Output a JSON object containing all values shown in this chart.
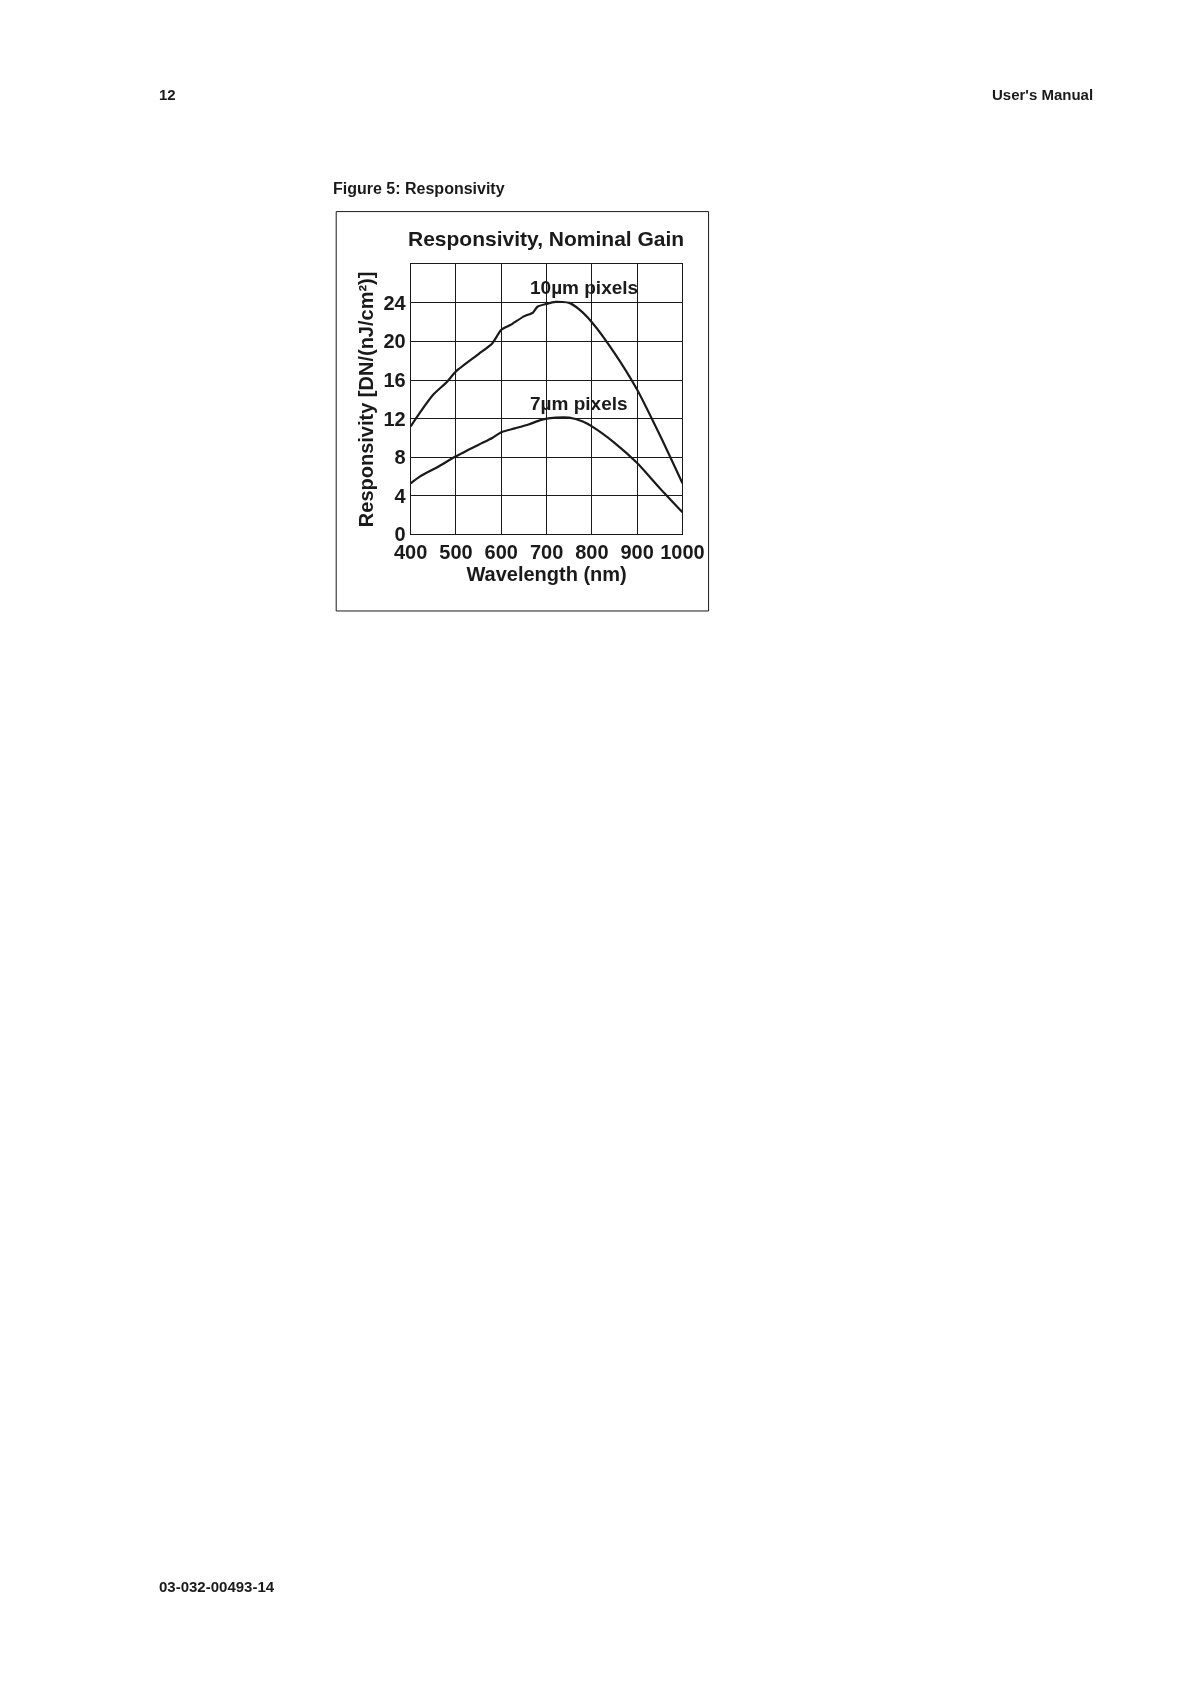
{
  "chart_data": {
    "type": "line",
    "title": "Responsivity, Nominal Gain",
    "xlabel": "Wavelength (nm)",
    "ylabel": "Responsivity [DN/(nJ/cm²)]",
    "annotations": [
      "12",
      "User's Manual",
      "Figure 5: Responsivity",
      "03-032-00493-14"
    ],
    "xlim": [
      400,
      1000
    ],
    "xticks": [
      400,
      500,
      600,
      700,
      800,
      900,
      1000
    ],
    "ylim": [
      0,
      28
    ],
    "yticks": [
      0,
      4,
      8,
      12,
      16,
      20,
      24,
      {
        "value": 28,
        "label": null
      }
    ],
    "grid": true,
    "legend": false,
    "marker": "none",
    "line_style": "solid",
    "series": [
      {
        "name": "10µm pixels",
        "color": "#1a1a1a",
        "x": [
          400,
          420,
          450,
          480,
          500,
          550,
          580,
          600,
          620,
          650,
          670,
          680,
          700,
          720,
          750,
          770,
          800,
          850,
          900,
          950,
          1000
        ],
        "values": [
          11.2,
          12.6,
          14.5,
          15.8,
          16.9,
          18.7,
          19.8,
          21.2,
          21.7,
          22.6,
          23.0,
          23.6,
          23.9,
          24.1,
          24.0,
          23.4,
          22.0,
          18.8,
          15.0,
          10.3,
          5.3
        ]
      },
      {
        "name": "7µm pixels",
        "color": "#1a1a1a",
        "x": [
          400,
          420,
          460,
          500,
          550,
          580,
          600,
          630,
          660,
          690,
          720,
          750,
          780,
          800,
          850,
          900,
          950,
          1000
        ],
        "values": [
          5.3,
          6.0,
          7.0,
          8.1,
          9.3,
          10.0,
          10.6,
          11.0,
          11.4,
          11.9,
          12.1,
          12.1,
          11.7,
          11.2,
          9.5,
          7.4,
          4.8,
          2.3
        ]
      }
    ]
  }
}
